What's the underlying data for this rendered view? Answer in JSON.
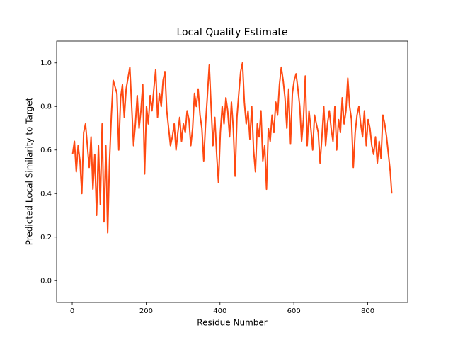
{
  "chart_data": {
    "type": "line",
    "title": "Local Quality Estimate",
    "x_label": "Residue Number",
    "y_label": "Predicted Local Similarity to Target",
    "x": [
      1,
      6,
      11,
      16,
      21,
      26,
      31,
      36,
      41,
      46,
      51,
      56,
      61,
      66,
      71,
      76,
      81,
      86,
      91,
      96,
      101,
      106,
      111,
      116,
      121,
      126,
      131,
      136,
      141,
      146,
      151,
      156,
      161,
      166,
      171,
      176,
      181,
      186,
      191,
      196,
      201,
      206,
      211,
      216,
      221,
      226,
      231,
      236,
      241,
      246,
      251,
      256,
      261,
      266,
      271,
      276,
      281,
      286,
      291,
      296,
      301,
      306,
      311,
      316,
      321,
      326,
      331,
      336,
      341,
      346,
      351,
      356,
      361,
      366,
      371,
      376,
      381,
      386,
      391,
      396,
      401,
      406,
      411,
      416,
      421,
      426,
      431,
      436,
      441,
      446,
      451,
      456,
      461,
      466,
      471,
      476,
      481,
      486,
      491,
      496,
      501,
      506,
      511,
      516,
      521,
      526,
      531,
      536,
      541,
      546,
      551,
      556,
      561,
      566,
      571,
      576,
      581,
      586,
      591,
      596,
      601,
      606,
      611,
      616,
      621,
      626,
      631,
      636,
      641,
      646,
      651,
      656,
      661,
      666,
      671,
      676,
      681,
      686,
      691,
      696,
      701,
      706,
      711,
      716,
      721,
      726,
      731,
      736,
      741,
      746,
      751,
      756,
      761,
      766,
      771,
      776,
      781,
      786,
      791,
      796,
      801,
      806,
      811,
      816,
      821,
      826,
      831,
      836,
      841,
      846,
      851,
      856,
      861,
      865
    ],
    "series": [
      {
        "color": "#ff4a12",
        "values": [
          0.58,
          0.64,
          0.5,
          0.62,
          0.55,
          0.4,
          0.68,
          0.72,
          0.62,
          0.52,
          0.66,
          0.42,
          0.58,
          0.3,
          0.62,
          0.35,
          0.72,
          0.27,
          0.62,
          0.22,
          0.55,
          0.76,
          0.92,
          0.89,
          0.86,
          0.6,
          0.84,
          0.9,
          0.75,
          0.88,
          0.93,
          0.98,
          0.8,
          0.62,
          0.72,
          0.85,
          0.7,
          0.78,
          0.9,
          0.49,
          0.8,
          0.72,
          0.85,
          0.78,
          0.88,
          0.97,
          0.75,
          0.86,
          0.8,
          0.92,
          0.96,
          0.78,
          0.7,
          0.62,
          0.66,
          0.72,
          0.6,
          0.68,
          0.75,
          0.64,
          0.72,
          0.68,
          0.78,
          0.74,
          0.62,
          0.7,
          0.86,
          0.8,
          0.88,
          0.76,
          0.7,
          0.55,
          0.72,
          0.85,
          0.99,
          0.8,
          0.62,
          0.75,
          0.58,
          0.45,
          0.68,
          0.8,
          0.72,
          0.84,
          0.78,
          0.66,
          0.82,
          0.7,
          0.48,
          0.75,
          0.86,
          0.96,
          1.0,
          0.82,
          0.72,
          0.78,
          0.65,
          0.8,
          0.6,
          0.5,
          0.72,
          0.66,
          0.78,
          0.55,
          0.62,
          0.42,
          0.7,
          0.64,
          0.76,
          0.68,
          0.82,
          0.76,
          0.9,
          0.98,
          0.92,
          0.84,
          0.7,
          0.88,
          0.63,
          0.86,
          0.92,
          0.95,
          0.88,
          0.8,
          0.64,
          0.74,
          0.94,
          0.62,
          0.78,
          0.7,
          0.6,
          0.76,
          0.72,
          0.68,
          0.54,
          0.66,
          0.8,
          0.62,
          0.72,
          0.78,
          0.7,
          0.64,
          0.8,
          0.6,
          0.74,
          0.68,
          0.84,
          0.72,
          0.78,
          0.93,
          0.8,
          0.74,
          0.52,
          0.68,
          0.76,
          0.8,
          0.72,
          0.66,
          0.78,
          0.62,
          0.74,
          0.7,
          0.62,
          0.58,
          0.66,
          0.54,
          0.64,
          0.56,
          0.76,
          0.72,
          0.66,
          0.58,
          0.5,
          0.4
        ]
      }
    ],
    "xlim": [
      -42.2,
      908.2
    ],
    "ylim": [
      -0.1,
      1.1
    ],
    "xticks": [
      0,
      200,
      400,
      600,
      800
    ],
    "yticks": [
      {
        "value": 0,
        "label": "0.0"
      },
      0.2,
      0.4,
      0.6,
      0.8,
      {
        "value": 1,
        "label": "1.0"
      }
    ]
  }
}
